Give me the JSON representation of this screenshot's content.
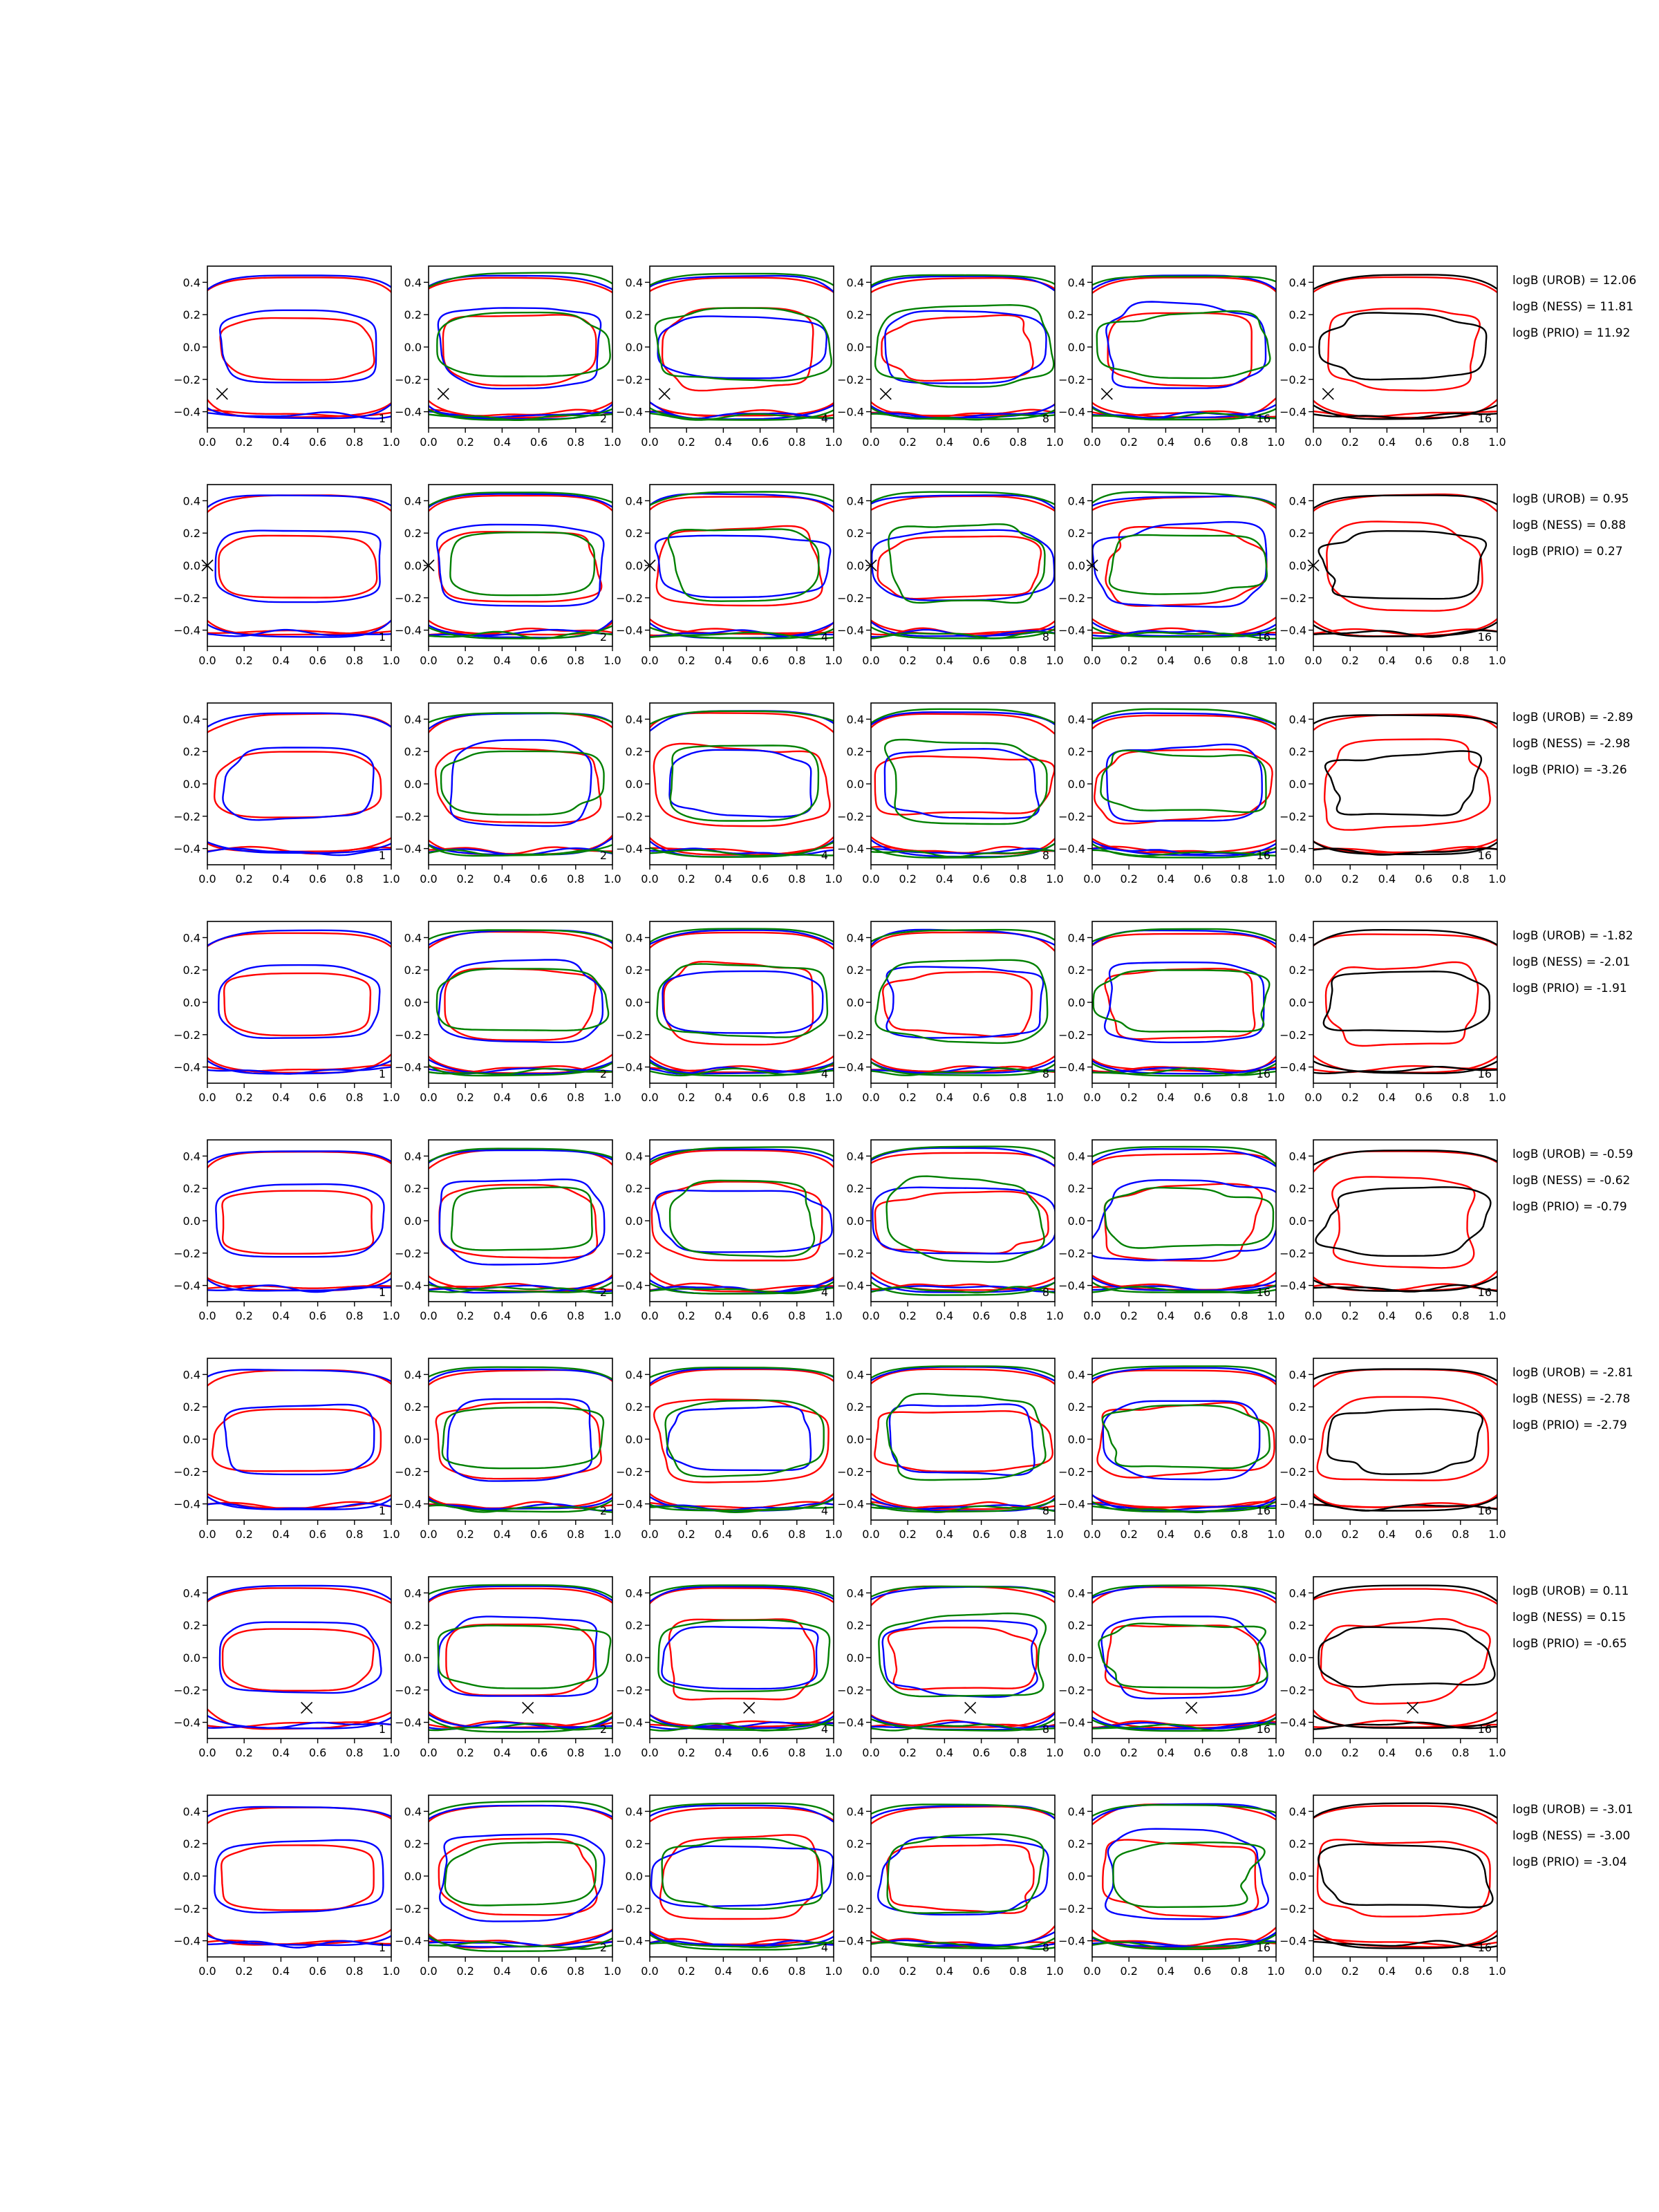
{
  "chart_data": {
    "type": "line",
    "layout": {
      "rows": 8,
      "cols": 6
    },
    "xlim": [
      0,
      1
    ],
    "ylim": [
      -0.5,
      0.5
    ],
    "xticks": [
      0.0,
      0.2,
      0.4,
      0.6,
      0.8,
      1.0
    ],
    "yticks": [
      -0.4,
      -0.2,
      0.0,
      0.2,
      0.4
    ],
    "xtick_labels": [
      "0.0",
      "0.2",
      "0.4",
      "0.6",
      "0.8",
      "1.0"
    ],
    "ytick_labels": [
      "−0.4",
      "−0.2",
      "0.0",
      "0.2",
      "0.4"
    ],
    "panel_labels": [
      "1",
      "2",
      "4",
      "8",
      "16",
      "16"
    ],
    "colors": {
      "red": "#ff0000",
      "blue": "#0000ff",
      "green": "#008000",
      "black": "#000000",
      "axes": "#000000"
    },
    "grid": false,
    "rows": [
      {
        "marker": [
          0.08,
          -0.29
        ],
        "annotations": [
          "logB (UROB) = 12.06",
          "logB (NESS) = 11.81",
          "logB (PRIO) = 11.92"
        ]
      },
      {
        "marker": [
          0.0,
          0.0
        ],
        "annotations": [
          "logB (UROB) = 0.95",
          "logB (NESS) = 0.88",
          "logB (PRIO) = 0.27"
        ]
      },
      {
        "marker": null,
        "annotations": [
          "logB (UROB) = -2.89",
          "logB (NESS) = -2.98",
          "logB (PRIO) = -3.26"
        ]
      },
      {
        "marker": null,
        "annotations": [
          "logB (UROB) = -1.82",
          "logB (NESS) = -2.01",
          "logB (PRIO) = -1.91"
        ]
      },
      {
        "marker": null,
        "annotations": [
          "logB (UROB) = -0.59",
          "logB (NESS) = -0.62",
          "logB (PRIO) = -0.79"
        ]
      },
      {
        "marker": null,
        "annotations": [
          "logB (UROB) = -2.81",
          "logB (NESS) = -2.78",
          "logB (PRIO) = -2.79"
        ]
      },
      {
        "marker": [
          0.54,
          -0.31
        ],
        "annotations": [
          "logB (UROB) = 0.11",
          "logB (NESS) = 0.15",
          "logB (PRIO) = -0.65"
        ]
      },
      {
        "marker": null,
        "annotations": [
          "logB (UROB) = -3.01",
          "logB (NESS) = -3.00",
          "logB (PRIO) = -3.04"
        ]
      }
    ]
  }
}
